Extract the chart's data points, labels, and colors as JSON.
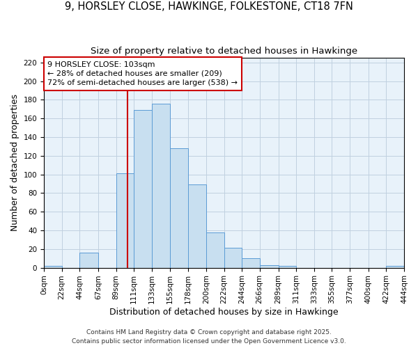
{
  "title": "9, HORSLEY CLOSE, HAWKINGE, FOLKESTONE, CT18 7FN",
  "subtitle": "Size of property relative to detached houses in Hawkinge",
  "xlabel": "Distribution of detached houses by size in Hawkinge",
  "ylabel": "Number of detached properties",
  "bar_color": "#c8dff0",
  "bar_edge_color": "#5b9bd5",
  "background_color": "#ffffff",
  "plot_bg_color": "#e8f2fa",
  "grid_color": "#c0d0e0",
  "bin_edges": [
    0,
    22,
    44,
    67,
    89,
    111,
    133,
    155,
    178,
    200,
    222,
    244,
    266,
    289,
    311,
    333,
    355,
    377,
    400,
    422,
    444
  ],
  "bin_labels": [
    "0sqm",
    "22sqm",
    "44sqm",
    "67sqm",
    "89sqm",
    "111sqm",
    "133sqm",
    "155sqm",
    "178sqm",
    "200sqm",
    "222sqm",
    "244sqm",
    "266sqm",
    "289sqm",
    "311sqm",
    "333sqm",
    "355sqm",
    "377sqm",
    "400sqm",
    "422sqm",
    "444sqm"
  ],
  "bar_heights": [
    2,
    0,
    16,
    0,
    101,
    169,
    176,
    128,
    89,
    38,
    21,
    10,
    3,
    2,
    0,
    0,
    0,
    0,
    0,
    2
  ],
  "ylim": [
    0,
    225
  ],
  "yticks": [
    0,
    20,
    40,
    60,
    80,
    100,
    120,
    140,
    160,
    180,
    200,
    220
  ],
  "vline_x": 103,
  "vline_color": "#cc0000",
  "annotation_title": "9 HORSLEY CLOSE: 103sqm",
  "annotation_line1": "← 28% of detached houses are smaller (209)",
  "annotation_line2": "72% of semi-detached houses are larger (538) →",
  "annotation_box_color": "#cc0000",
  "footer1": "Contains HM Land Registry data © Crown copyright and database right 2025.",
  "footer2": "Contains public sector information licensed under the Open Government Licence v3.0.",
  "title_fontsize": 10.5,
  "subtitle_fontsize": 9.5,
  "axis_label_fontsize": 9,
  "tick_fontsize": 7.5,
  "annotation_fontsize": 8,
  "footer_fontsize": 6.5
}
